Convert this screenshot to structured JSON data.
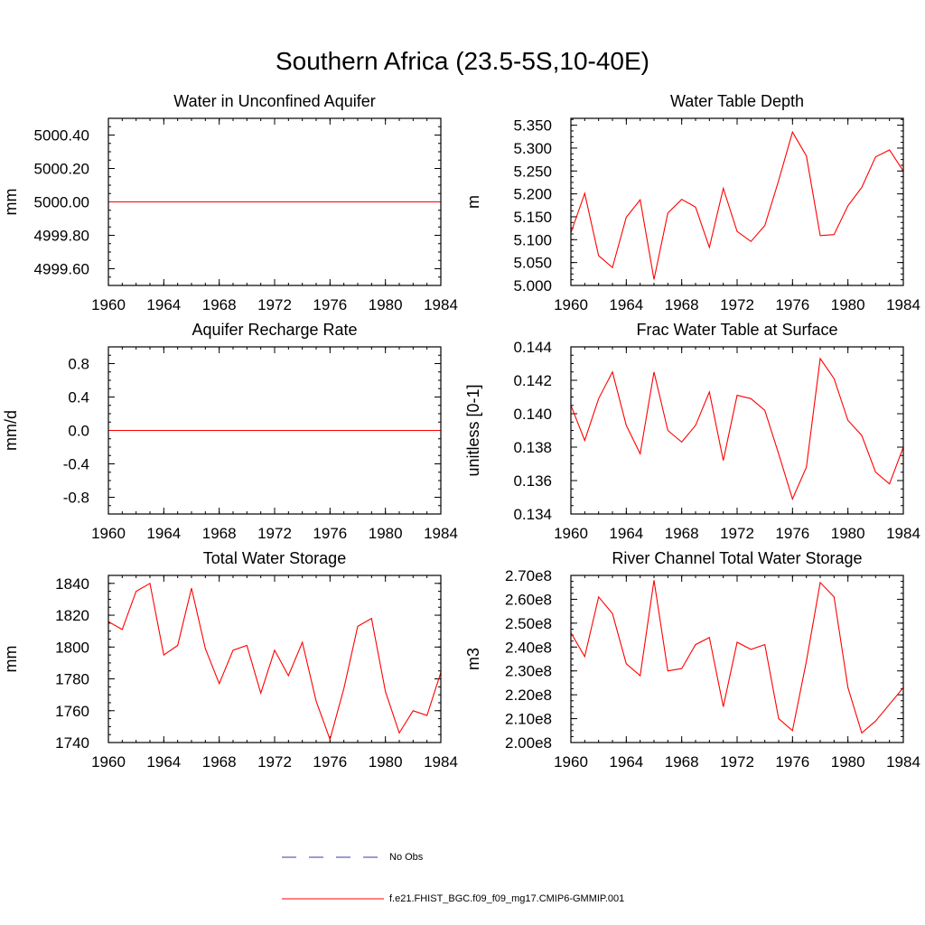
{
  "title": "Southern Africa (23.5-5S,10-40E)",
  "colors": {
    "model_line": "#ff0000",
    "obs_line": "#3a3aa8",
    "axis": "#000000"
  },
  "legend": [
    {
      "label": "No Obs",
      "style": "dashed",
      "color": "#3a3aa8"
    },
    {
      "label": "f.e21.FHIST_BGC.f09_f09_mg17.CMIP6-GMMIP.001",
      "style": "solid",
      "color": "#ff0000"
    }
  ],
  "chart_data": [
    {
      "id": "aquifer-water",
      "type": "line",
      "title": "Water in Unconfined Aquifer",
      "ylabel": "mm",
      "xlim": [
        1960,
        1984
      ],
      "ylim": [
        4999.5,
        5000.5
      ],
      "xticks": [
        1960,
        1964,
        1968,
        1972,
        1976,
        1980,
        1984
      ],
      "yticks": [
        4999.6,
        4999.8,
        5000.0,
        5000.2,
        5000.4
      ],
      "ytick_labels": [
        "4999.60",
        "4999.80",
        "5000.00",
        "5000.20",
        "5000.40"
      ],
      "yminor": 0.05,
      "x": [
        1960,
        1961,
        1962,
        1963,
        1964,
        1965,
        1966,
        1967,
        1968,
        1969,
        1970,
        1971,
        1972,
        1973,
        1974,
        1975,
        1976,
        1977,
        1978,
        1979,
        1980,
        1981,
        1982,
        1983,
        1984
      ],
      "values": [
        5000.0,
        5000.0,
        5000.0,
        5000.0,
        5000.0,
        5000.0,
        5000.0,
        5000.0,
        5000.0,
        5000.0,
        5000.0,
        5000.0,
        5000.0,
        5000.0,
        5000.0,
        5000.0,
        5000.0,
        5000.0,
        5000.0,
        5000.0,
        5000.0,
        5000.0,
        5000.0,
        5000.0,
        5000.0
      ]
    },
    {
      "id": "water-table-depth",
      "type": "line",
      "title": "Water Table Depth",
      "ylabel": "m",
      "xlim": [
        1960,
        1984
      ],
      "ylim": [
        5.0,
        5.365
      ],
      "xticks": [
        1960,
        1964,
        1968,
        1972,
        1976,
        1980,
        1984
      ],
      "yticks": [
        5.0,
        5.05,
        5.1,
        5.15,
        5.2,
        5.25,
        5.3,
        5.35
      ],
      "ytick_labels": [
        "5.000",
        "5.050",
        "5.100",
        "5.150",
        "5.200",
        "5.250",
        "5.300",
        "5.350"
      ],
      "yminor": 0.0125,
      "x": [
        1960,
        1961,
        1962,
        1963,
        1964,
        1965,
        1966,
        1967,
        1968,
        1969,
        1970,
        1971,
        1972,
        1973,
        1974,
        1975,
        1976,
        1977,
        1978,
        1979,
        1980,
        1981,
        1982,
        1983,
        1984
      ],
      "values": [
        5.115,
        5.201,
        5.065,
        5.039,
        5.149,
        5.187,
        5.013,
        5.158,
        5.188,
        5.171,
        5.083,
        5.212,
        5.118,
        5.096,
        5.131,
        5.229,
        5.335,
        5.283,
        5.109,
        5.111,
        5.174,
        5.214,
        5.281,
        5.296,
        5.25
      ]
    },
    {
      "id": "aquifer-recharge",
      "type": "line",
      "title": "Aquifer Recharge Rate",
      "ylabel": "mm/d",
      "xlim": [
        1960,
        1984
      ],
      "ylim": [
        -1.0,
        1.0
      ],
      "xticks": [
        1960,
        1964,
        1968,
        1972,
        1976,
        1980,
        1984
      ],
      "yticks": [
        -0.8,
        -0.4,
        0.0,
        0.4,
        0.8
      ],
      "ytick_labels": [
        "-0.8",
        "-0.4",
        "0.0",
        "0.4",
        "0.8"
      ],
      "yminor": 0.1,
      "x": [
        1960,
        1961,
        1962,
        1963,
        1964,
        1965,
        1966,
        1967,
        1968,
        1969,
        1970,
        1971,
        1972,
        1973,
        1974,
        1975,
        1976,
        1977,
        1978,
        1979,
        1980,
        1981,
        1982,
        1983,
        1984
      ],
      "values": [
        0,
        0,
        0,
        0,
        0,
        0,
        0,
        0,
        0,
        0,
        0,
        0,
        0,
        0,
        0,
        0,
        0,
        0,
        0,
        0,
        0,
        0,
        0,
        0,
        0
      ]
    },
    {
      "id": "frac-water-table",
      "type": "line",
      "title": "Frac Water Table at Surface",
      "ylabel": "unitless [0-1]",
      "xlim": [
        1960,
        1984
      ],
      "ylim": [
        0.134,
        0.144
      ],
      "xticks": [
        1960,
        1964,
        1968,
        1972,
        1976,
        1980,
        1984
      ],
      "yticks": [
        0.134,
        0.136,
        0.138,
        0.14,
        0.142,
        0.144
      ],
      "ytick_labels": [
        "0.134",
        "0.136",
        "0.138",
        "0.140",
        "0.142",
        "0.144"
      ],
      "yminor": 0.0005,
      "x": [
        1960,
        1961,
        1962,
        1963,
        1964,
        1965,
        1966,
        1967,
        1968,
        1969,
        1970,
        1971,
        1972,
        1973,
        1974,
        1975,
        1976,
        1977,
        1978,
        1979,
        1980,
        1981,
        1982,
        1983,
        1984
      ],
      "values": [
        0.1405,
        0.1384,
        0.1409,
        0.1425,
        0.1393,
        0.1376,
        0.1425,
        0.139,
        0.1383,
        0.1393,
        0.1413,
        0.1372,
        0.1411,
        0.1409,
        0.1402,
        0.1376,
        0.1349,
        0.1368,
        0.1433,
        0.1421,
        0.1396,
        0.1387,
        0.1365,
        0.1358,
        0.138
      ]
    },
    {
      "id": "total-water-storage",
      "type": "line",
      "title": "Total Water Storage",
      "ylabel": "mm",
      "xlim": [
        1960,
        1984
      ],
      "ylim": [
        1740,
        1845
      ],
      "xticks": [
        1960,
        1964,
        1968,
        1972,
        1976,
        1980,
        1984
      ],
      "yticks": [
        1740,
        1760,
        1780,
        1800,
        1820,
        1840
      ],
      "ytick_labels": [
        "1740",
        "1760",
        "1780",
        "1800",
        "1820",
        "1840"
      ],
      "yminor": 5,
      "x": [
        1960,
        1961,
        1962,
        1963,
        1964,
        1965,
        1966,
        1967,
        1968,
        1969,
        1970,
        1971,
        1972,
        1973,
        1974,
        1975,
        1976,
        1977,
        1978,
        1979,
        1980,
        1981,
        1982,
        1983,
        1984
      ],
      "values": [
        1816,
        1811,
        1835,
        1840,
        1795,
        1801,
        1837,
        1799,
        1777,
        1798,
        1801,
        1771,
        1798,
        1782,
        1803,
        1766,
        1742,
        1774,
        1813,
        1818,
        1772,
        1746,
        1760,
        1757,
        1784
      ]
    },
    {
      "id": "river-channel-storage",
      "type": "line",
      "title": "River Channel Total Water Storage",
      "ylabel": "m3",
      "xlim": [
        1960,
        1984
      ],
      "ylim": [
        200000000.0,
        270000000.0
      ],
      "xticks": [
        1960,
        1964,
        1968,
        1972,
        1976,
        1980,
        1984
      ],
      "yticks": [
        200000000.0,
        210000000.0,
        220000000.0,
        230000000.0,
        240000000.0,
        250000000.0,
        260000000.0,
        270000000.0
      ],
      "ytick_labels": [
        "2.00e8",
        "2.10e8",
        "2.20e8",
        "2.30e8",
        "2.40e8",
        "2.50e8",
        "2.60e8",
        "2.70e8"
      ],
      "yminor": 2500000.0,
      "x": [
        1960,
        1961,
        1962,
        1963,
        1964,
        1965,
        1966,
        1967,
        1968,
        1969,
        1970,
        1971,
        1972,
        1973,
        1974,
        1975,
        1976,
        1977,
        1978,
        1979,
        1980,
        1981,
        1982,
        1983,
        1984
      ],
      "values": [
        246000000.0,
        236000000.0,
        261000000.0,
        254000000.0,
        233000000.0,
        228000000.0,
        268000000.0,
        230000000.0,
        231000000.0,
        241000000.0,
        244000000.0,
        215000000.0,
        242000000.0,
        239000000.0,
        241000000.0,
        210000000.0,
        205000000.0,
        234000000.0,
        267000000.0,
        261000000.0,
        223000000.0,
        204000000.0,
        209000000.0,
        216000000.0,
        223000000.0
      ]
    }
  ]
}
